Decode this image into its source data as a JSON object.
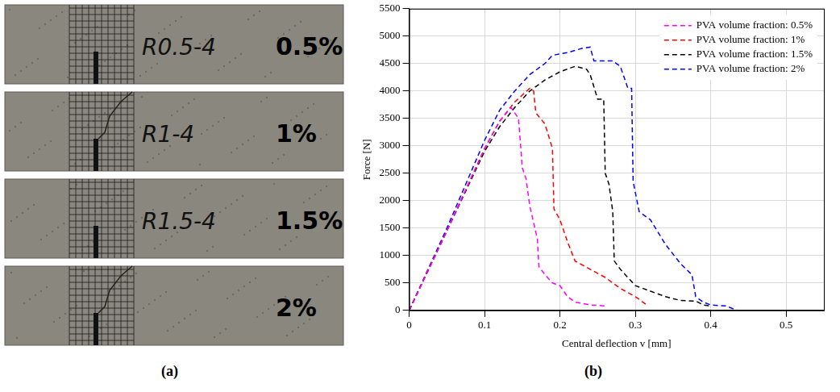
{
  "panel_labels": [
    "(a)",
    "(b)"
  ],
  "photo": {
    "specimens": [
      {
        "id": "R0.5-4",
        "label": "0.5%"
      },
      {
        "id": "R1-4",
        "label": "1%"
      },
      {
        "id": "R1.5-4",
        "label": "1.5%"
      },
      {
        "label": "2%"
      }
    ]
  },
  "chart_data": {
    "type": "line",
    "x_label": "Central deflection v [mm]",
    "y_label": "Force [N]",
    "xlim": [
      0,
      0.55
    ],
    "xticks": [
      0,
      0.1,
      0.2,
      0.3,
      0.4,
      0.5
    ],
    "ylim": [
      0,
      5500
    ],
    "yticks": [
      0,
      500,
      1000,
      1500,
      2000,
      2500,
      3000,
      3500,
      4000,
      4500,
      5000,
      5500
    ],
    "grid": true,
    "legend": "upper right",
    "series": [
      {
        "name": "PVA volume fraction: 0.5%",
        "color": "#ff00ff",
        "line_style": "dashed",
        "x": [
          0,
          0.05,
          0.1,
          0.12,
          0.135,
          0.145,
          0.15,
          0.155,
          0.16,
          0.165,
          0.17,
          0.172,
          0.18,
          0.19,
          0.2,
          0.21,
          0.22,
          0.24,
          0.26
        ],
        "values": [
          0,
          1450,
          2950,
          3450,
          3700,
          3500,
          2600,
          2400,
          1900,
          1600,
          1300,
          800,
          650,
          500,
          450,
          250,
          150,
          100,
          80
        ]
      },
      {
        "name": "PVA volume fraction: 1%",
        "color": "#ff0000",
        "line_style": "dashed",
        "x": [
          0,
          0.05,
          0.1,
          0.12,
          0.14,
          0.16,
          0.165,
          0.168,
          0.18,
          0.19,
          0.192,
          0.2,
          0.21,
          0.22,
          0.24,
          0.26,
          0.28,
          0.3,
          0.315
        ],
        "values": [
          0,
          1450,
          2950,
          3450,
          3800,
          4050,
          4000,
          3600,
          3400,
          2950,
          1850,
          1650,
          1250,
          900,
          750,
          600,
          400,
          250,
          100
        ]
      },
      {
        "name": "PVA volume fraction: 1.5%",
        "color": "#000000",
        "line_style": "dashed",
        "x": [
          0,
          0.05,
          0.1,
          0.12,
          0.14,
          0.16,
          0.18,
          0.2,
          0.22,
          0.235,
          0.24,
          0.25,
          0.258,
          0.26,
          0.265,
          0.27,
          0.272,
          0.28,
          0.3,
          0.32,
          0.34,
          0.36,
          0.38,
          0.39,
          0.4
        ],
        "values": [
          0,
          1450,
          2900,
          3350,
          3700,
          4000,
          4200,
          4350,
          4450,
          4400,
          4300,
          3850,
          3850,
          2500,
          2300,
          1800,
          900,
          750,
          450,
          350,
          250,
          180,
          170,
          100,
          80
        ]
      },
      {
        "name": "PVA volume fraction: 2%",
        "color": "#0000ff",
        "line_style": "dashed",
        "x": [
          0,
          0.05,
          0.1,
          0.12,
          0.14,
          0.16,
          0.18,
          0.19,
          0.21,
          0.23,
          0.24,
          0.245,
          0.27,
          0.28,
          0.29,
          0.295,
          0.297,
          0.305,
          0.32,
          0.34,
          0.36,
          0.375,
          0.38,
          0.39,
          0.4,
          0.42,
          0.435
        ],
        "values": [
          0,
          1500,
          3100,
          3650,
          4000,
          4300,
          4500,
          4650,
          4700,
          4780,
          4800,
          4550,
          4550,
          4450,
          4050,
          4050,
          2350,
          1800,
          1650,
          1200,
          850,
          650,
          250,
          150,
          100,
          80,
          0
        ]
      }
    ]
  }
}
